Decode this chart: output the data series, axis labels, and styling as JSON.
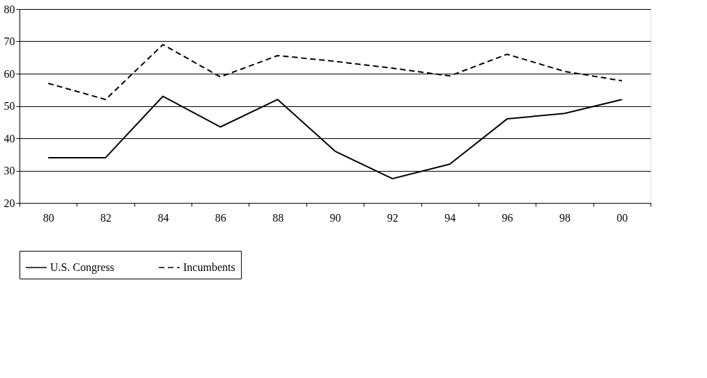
{
  "chart_data": {
    "type": "line",
    "categories": [
      "80",
      "82",
      "84",
      "86",
      "88",
      "90",
      "92",
      "94",
      "96",
      "98",
      "00"
    ],
    "series": [
      {
        "name": "U.S. Congress",
        "color": "#000000",
        "line_style": "solid",
        "values": [
          34,
          34,
          53,
          43.5,
          52,
          36,
          27.5,
          32,
          46,
          47.7,
          52
        ]
      },
      {
        "name": "Incumbents",
        "color": "#000000",
        "line_style": "dashed",
        "values": [
          57,
          52,
          69,
          59,
          65.6,
          63.8,
          61.7,
          59.3,
          66,
          60.7,
          57.8
        ]
      }
    ],
    "ylim": [
      20,
      80
    ],
    "yticks": [
      20,
      30,
      40,
      50,
      60,
      70,
      80
    ],
    "grid": "y",
    "legend": "bottom",
    "marker": "none"
  }
}
